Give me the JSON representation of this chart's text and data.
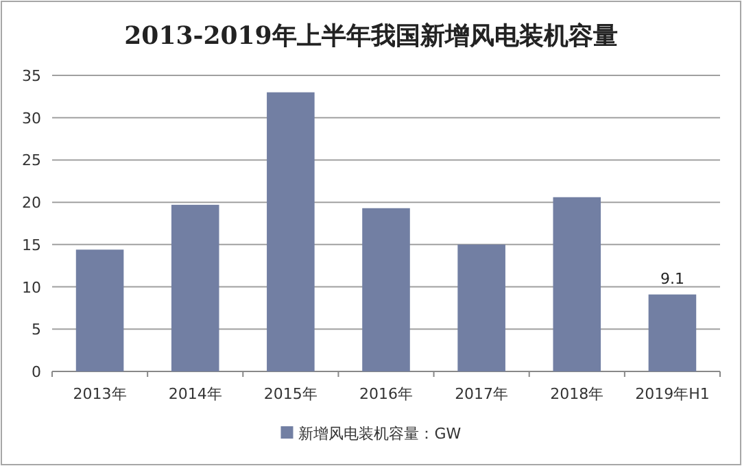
{
  "chart_data": {
    "type": "bar",
    "title": "2013-2019年上半年我国新增风电装机容量",
    "categories": [
      "2013年",
      "2014年",
      "2015年",
      "2016年",
      "2017年",
      "2018年",
      "2019年H1"
    ],
    "series": [
      {
        "name": "新增风电装机容量：GW",
        "color": "#727fa3",
        "values": [
          14.4,
          19.7,
          33.0,
          19.3,
          15.0,
          20.6,
          9.1
        ],
        "value_labels": [
          null,
          null,
          null,
          null,
          null,
          null,
          "9.1"
        ]
      }
    ],
    "ylim": [
      0,
      35
    ],
    "yticks": [
      0,
      5,
      10,
      15,
      20,
      25,
      30,
      35
    ],
    "grid": "y",
    "legend": "bottom"
  }
}
